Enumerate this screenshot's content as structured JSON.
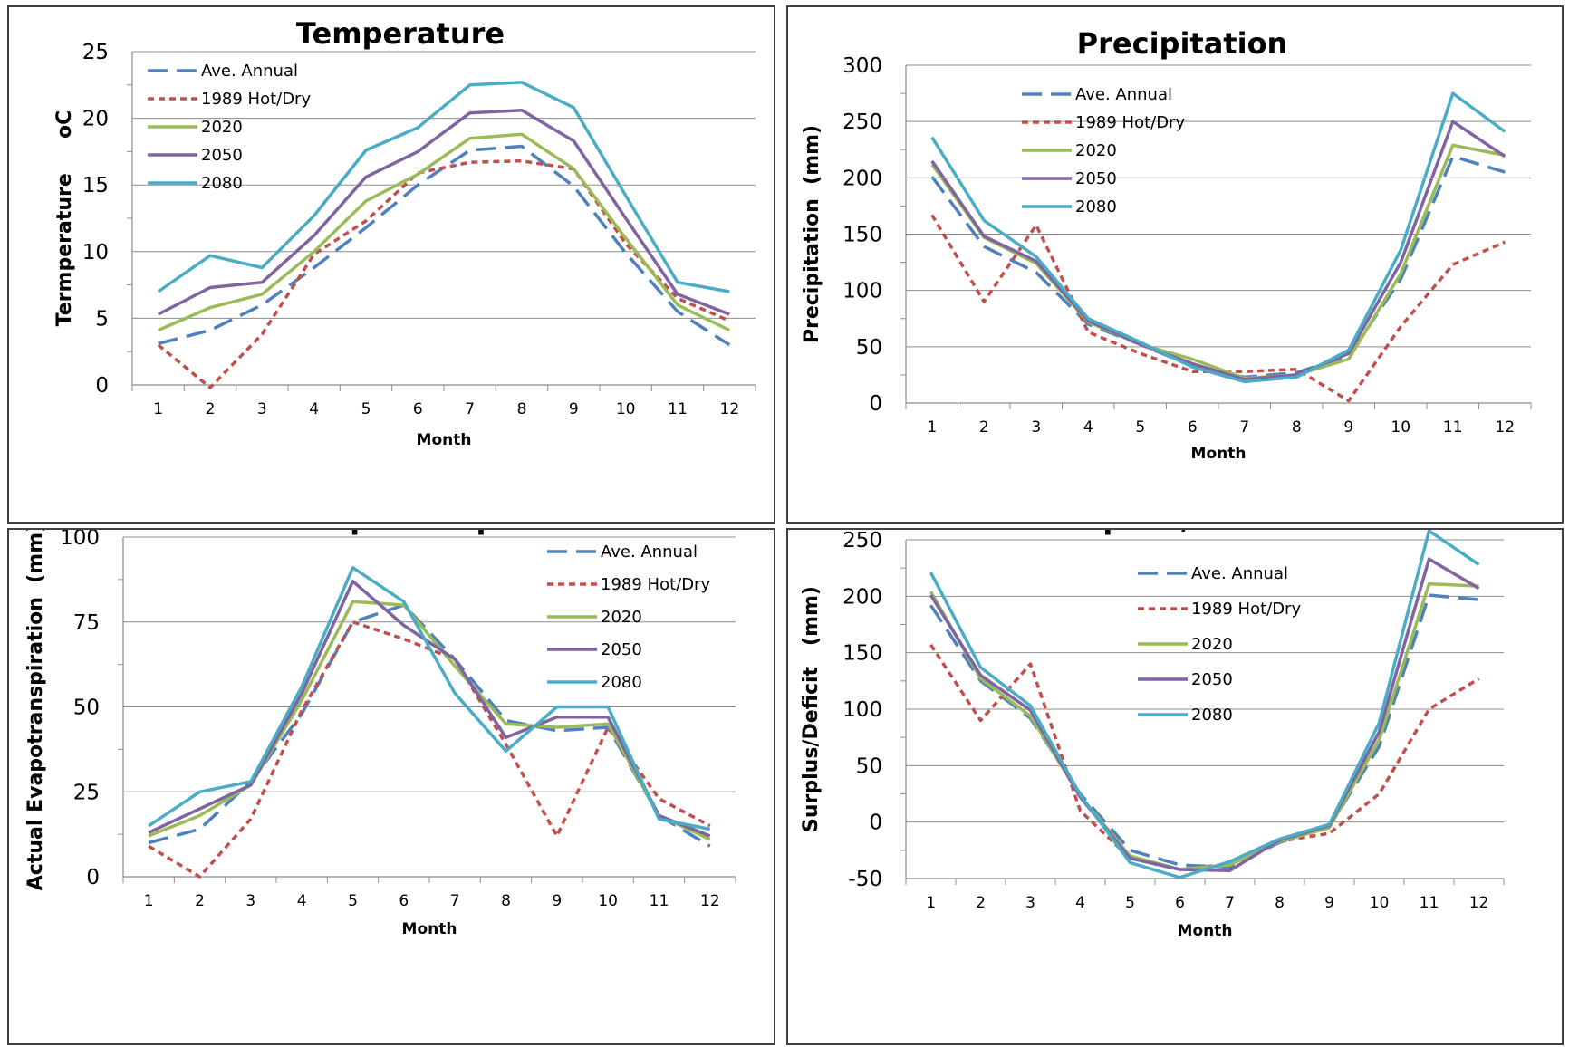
{
  "chart_data": [
    {
      "type": "line",
      "title": "Temperature",
      "xlabel": "Month",
      "ylabel": "Termperature     oC",
      "categories": [
        "1",
        "2",
        "3",
        "4",
        "5",
        "6",
        "7",
        "8",
        "9",
        "10",
        "11",
        "12"
      ],
      "ylim": [
        0,
        25
      ],
      "yticks": [
        "0",
        "5",
        "10",
        "15",
        "20",
        "25"
      ],
      "legend_position": "top-left",
      "grid": true,
      "series": [
        {
          "name": "Ave. Annual",
          "values": [
            3.1,
            4.1,
            6.0,
            8.8,
            11.8,
            15.0,
            17.6,
            17.9,
            14.9,
            9.9,
            5.5,
            3.0
          ]
        },
        {
          "name": "1989 Hot/Dry",
          "values": [
            3.0,
            -0.2,
            3.8,
            9.8,
            12.3,
            15.9,
            16.7,
            16.8,
            16.2,
            10.6,
            6.5,
            4.8
          ]
        },
        {
          "name": "2020",
          "values": [
            4.1,
            5.8,
            6.8,
            10.0,
            13.8,
            15.8,
            18.5,
            18.8,
            16.2,
            11.0,
            6.0,
            4.1
          ]
        },
        {
          "name": "2050",
          "values": [
            5.3,
            7.3,
            7.7,
            11.2,
            15.6,
            17.5,
            20.4,
            20.6,
            18.3,
            12.5,
            6.8,
            5.3
          ]
        },
        {
          "name": "2080",
          "values": [
            7.0,
            9.7,
            8.8,
            12.7,
            17.6,
            19.3,
            22.5,
            22.7,
            20.8,
            14.2,
            7.7,
            7.0
          ]
        }
      ]
    },
    {
      "type": "line",
      "title": "Precipitation",
      "xlabel": "Month",
      "ylabel": "Precipitation  (mm)",
      "categories": [
        "1",
        "2",
        "3",
        "4",
        "5",
        "6",
        "7",
        "8",
        "9",
        "10",
        "11",
        "12"
      ],
      "ylim": [
        0,
        300
      ],
      "yticks": [
        "0",
        "50",
        "100",
        "150",
        "200",
        "250",
        "300"
      ],
      "legend_position": "top-right",
      "grid": true,
      "series": [
        {
          "name": "Ave. Annual",
          "values": [
            201,
            139,
            116,
            70,
            52,
            33,
            23,
            27,
            42,
            110,
            219,
            205
          ]
        },
        {
          "name": "1989 Hot/Dry",
          "values": [
            167,
            90,
            158,
            63,
            44,
            28,
            28,
            30,
            2,
            68,
            123,
            143
          ]
        },
        {
          "name": "2020",
          "values": [
            212,
            147,
            124,
            72,
            52,
            39,
            22,
            25,
            39,
            115,
            229,
            220
          ]
        },
        {
          "name": "2050",
          "values": [
            215,
            148,
            126,
            73,
            52,
            35,
            21,
            25,
            44,
            125,
            250,
            219
          ]
        },
        {
          "name": "2080",
          "values": [
            236,
            162,
            130,
            75,
            54,
            32,
            19,
            23,
            47,
            136,
            275,
            241
          ]
        }
      ]
    },
    {
      "type": "line",
      "title": "Actual Evapotranspiration",
      "xlabel": "Month",
      "ylabel": "Actual Evapotranspiration  (mm)",
      "categories": [
        "1",
        "2",
        "3",
        "4",
        "5",
        "6",
        "7",
        "8",
        "9",
        "10",
        "11",
        "12"
      ],
      "ylim": [
        0,
        100
      ],
      "yticks": [
        "0",
        "25",
        "50",
        "75",
        "100"
      ],
      "legend_position": "top-right",
      "grid": true,
      "series": [
        {
          "name": "Ave. Annual",
          "values": [
            10,
            14,
            28,
            48,
            75,
            80,
            64,
            46,
            43,
            44,
            18,
            9
          ]
        },
        {
          "name": "1989 Hot/Dry",
          "values": [
            9,
            0,
            17,
            49,
            75,
            70,
            64,
            39,
            12,
            44,
            23,
            15
          ]
        },
        {
          "name": "2020",
          "values": [
            12,
            18,
            27,
            52,
            81,
            80,
            62,
            45,
            44,
            45,
            18,
            11
          ]
        },
        {
          "name": "2050",
          "values": [
            13,
            20,
            27,
            54,
            87,
            74,
            64,
            41,
            47,
            47,
            18,
            12
          ]
        },
        {
          "name": "2080",
          "values": [
            15,
            25,
            28,
            56,
            91,
            81,
            54,
            37,
            50,
            50,
            17,
            14
          ]
        }
      ]
    },
    {
      "type": "line",
      "title": "Surplus / Deficit",
      "xlabel": "Month",
      "ylabel": "Surplus/Deficit   (mm)",
      "categories": [
        "1",
        "2",
        "3",
        "4",
        "5",
        "6",
        "7",
        "8",
        "9",
        "10",
        "11",
        "12"
      ],
      "ylim": [
        -50,
        250
      ],
      "yticks": [
        "-50",
        "0",
        "50",
        "100",
        "150",
        "200",
        "250"
      ],
      "legend_position": "top-right",
      "grid": true,
      "series": [
        {
          "name": "Ave. Annual",
          "values": [
            192,
            125,
            92,
            25,
            -25,
            -38,
            -40,
            -18,
            -4,
            67,
            201,
            197
          ]
        },
        {
          "name": "1989 Hot/Dry",
          "values": [
            157,
            90,
            140,
            10,
            -32,
            -42,
            -37,
            -17,
            -10,
            25,
            100,
            127
          ]
        },
        {
          "name": "2020",
          "values": [
            204,
            127,
            94,
            23,
            -30,
            -42,
            -38,
            -17,
            -5,
            73,
            211,
            209
          ]
        },
        {
          "name": "2050",
          "values": [
            201,
            130,
            99,
            22,
            -32,
            -42,
            -43,
            -16,
            -3,
            80,
            233,
            207
          ]
        },
        {
          "name": "2080",
          "values": [
            221,
            137,
            103,
            24,
            -36,
            -49,
            -35,
            -15,
            -2,
            88,
            258,
            228
          ]
        }
      ]
    }
  ],
  "series_styles": [
    {
      "color": "#4F81BD",
      "dash": "22,10"
    },
    {
      "color": "#C0504D",
      "dash": "7,5"
    },
    {
      "color": "#9BBB59",
      "dash": ""
    },
    {
      "color": "#8064A2",
      "dash": ""
    },
    {
      "color": "#4BACC6",
      "dash": ""
    }
  ]
}
